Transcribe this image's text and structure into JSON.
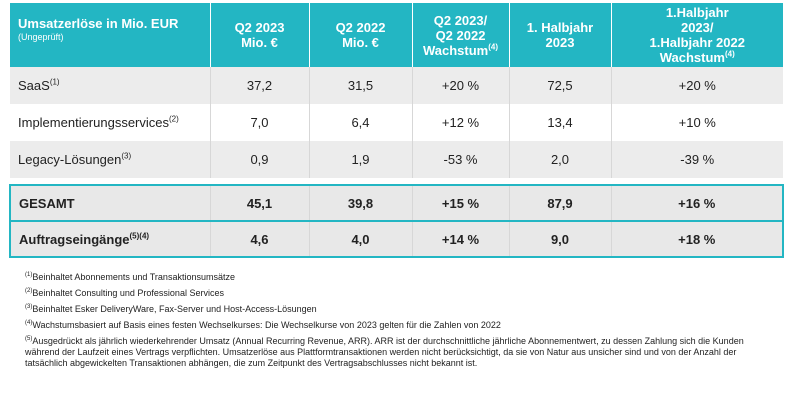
{
  "header": {
    "title": "Umsatzerlöse in Mio. EUR",
    "subtitle": "(Ungeprüft)",
    "col1": [
      "Q2 2023",
      "Mio. €"
    ],
    "col2": [
      "Q2 2022",
      "Mio. €"
    ],
    "col3": [
      "Q2 2023/",
      "Q2 2022",
      "Wachstum",
      "(4)"
    ],
    "col4": [
      "1. Halbjahr",
      "2023"
    ],
    "col5": [
      "1.Halbjahr",
      "2023/",
      "1.Halbjahr 2022",
      "Wachstum",
      "(4)"
    ]
  },
  "rows": [
    {
      "label": "SaaS",
      "sup": "(1)",
      "q2_2023": "37,2",
      "q2_2022": "31,5",
      "growth_q2": "+20 %",
      "h1_2023": "72,5",
      "growth_h1": "+20 %"
    },
    {
      "label": "Implementierungsservices",
      "sup": "(2)",
      "q2_2023": "7,0",
      "q2_2022": "6,4",
      "growth_q2": "+12 %",
      "h1_2023": "13,4",
      "growth_h1": "+10 %"
    },
    {
      "label": "Legacy-Lösungen",
      "sup": "(3)",
      "q2_2023": "0,9",
      "q2_2022": "1,9",
      "growth_q2": "-53 %",
      "h1_2023": "2,0",
      "growth_h1": "-39 %"
    }
  ],
  "totals": [
    {
      "label": "GESAMT",
      "sup": "",
      "q2_2023": "45,1",
      "q2_2022": "39,8",
      "growth_q2": "+15 %",
      "h1_2023": "87,9",
      "growth_h1": "+16 %"
    },
    {
      "label": "Auftragseingänge",
      "sup": "(5)(4)",
      "q2_2023": "4,6",
      "q2_2022": "4,0",
      "growth_q2": "+14 %",
      "h1_2023": "9,0",
      "growth_h1": "+18 %"
    }
  ],
  "footnotes": [
    {
      "mark": "(1)",
      "text": "Beinhaltet Abonnements und Transaktionsumsätze"
    },
    {
      "mark": "(2)",
      "text": "Beinhaltet Consulting und Professional Services"
    },
    {
      "mark": "(3)",
      "text": "Beinhaltet Esker DeliveryWare, Fax-Server und Host-Access-Lösungen"
    },
    {
      "mark": "(4)",
      "text": "Wachstumsbasiert auf Basis eines festen Wechselkurses: Die Wechselkurse von 2023 gelten für die Zahlen von 2022"
    },
    {
      "mark": "(5)",
      "text": "Ausgedrückt als jährlich wiederkehrender Umsatz (Annual Recurring Revenue, ARR). ARR ist der durchschnittliche jährliche Abonnementwert, zu dessen Zahlung sich die Kunden während der Laufzeit eines Vertrags verpflichten. Umsatzerlöse aus Plattformtransaktionen werden nicht berücksichtigt, da sie von Natur aus unsicher sind und von der Anzahl der tatsächlich abgewickelten Transaktionen abhängen, die zum Zeitpunkt des Vertragsabschlusses nicht bekannt ist."
    }
  ],
  "colors": {
    "header_bg": "#23b6c3",
    "row_shade": "#ececec",
    "total_border": "#23b6c3"
  }
}
